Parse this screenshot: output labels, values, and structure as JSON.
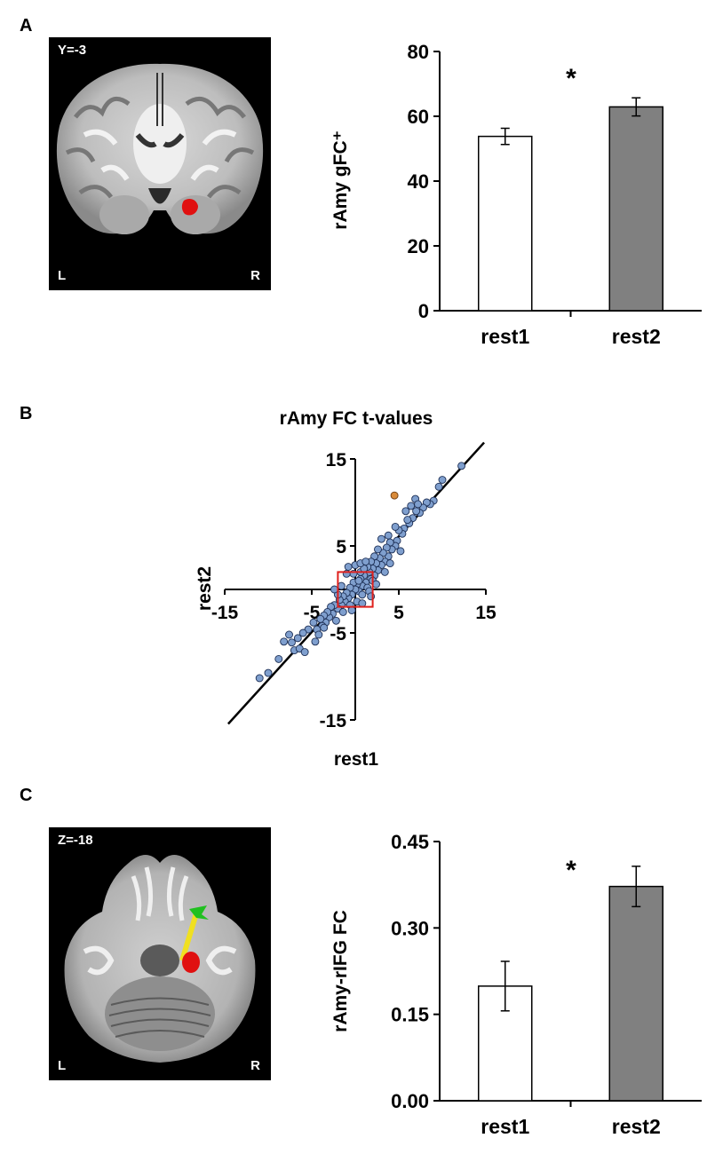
{
  "panels": {
    "a": {
      "letter": "A",
      "brain": {
        "slice": "Y=-3",
        "left": "L",
        "right": "R"
      }
    },
    "b": {
      "letter": "B"
    },
    "c": {
      "letter": "C",
      "brain": {
        "slice": "Z=-18",
        "left": "L",
        "right": "R"
      }
    }
  },
  "colors": {
    "bar_rest1": "#ffffff",
    "bar_rest2": "#808080",
    "scatter_point": "#7f9fce",
    "highlight_point": "#d98b3a",
    "roi_box": "#e0201c",
    "amygdala": "#e01010",
    "connection": "#f0e020",
    "rifg": "#20c020"
  },
  "chart_data": [
    {
      "type": "bar",
      "panel": "A",
      "categories": [
        "rest1",
        "rest2"
      ],
      "values": [
        53.8,
        62.9
      ],
      "errors": [
        2.5,
        2.8
      ],
      "ylabel": "rAmy gFC⁺",
      "ylim": [
        0,
        80
      ],
      "yticks": [
        "0",
        "20",
        "40",
        "60",
        "80"
      ],
      "significance": "*",
      "grid": false
    },
    {
      "type": "scatter",
      "panel": "B",
      "title": "rAmy FC t-values",
      "xlabel": "rest1",
      "ylabel": "rest2",
      "xlim": [
        -15,
        15
      ],
      "ylim": [
        -15,
        15
      ],
      "xticks": [
        "-15",
        "-5",
        "5",
        "15"
      ],
      "yticks": [
        "15",
        "5",
        "-5",
        "-15"
      ],
      "fit_line": {
        "slope": 1.1,
        "intercept": 0.6
      },
      "roi_box": {
        "x": [
          -2,
          2
        ],
        "y": [
          -2,
          2
        ]
      },
      "highlight": {
        "x": 4.5,
        "y": 10.8
      },
      "points": [
        [
          12.2,
          14.2
        ],
        [
          10.0,
          12.6
        ],
        [
          9.6,
          11.8
        ],
        [
          9.0,
          10.2
        ],
        [
          8.6,
          9.8
        ],
        [
          8.2,
          10.0
        ],
        [
          7.8,
          9.4
        ],
        [
          7.4,
          8.8
        ],
        [
          7.0,
          9.0
        ],
        [
          6.6,
          8.2
        ],
        [
          6.2,
          7.6
        ],
        [
          6.0,
          8.0
        ],
        [
          5.6,
          7.0
        ],
        [
          5.4,
          6.4
        ],
        [
          5.0,
          6.8
        ],
        [
          4.8,
          5.6
        ],
        [
          4.6,
          5.0
        ],
        [
          6.4,
          9.6
        ],
        [
          6.9,
          10.4
        ],
        [
          7.2,
          9.8
        ],
        [
          5.8,
          9.0
        ],
        [
          4.2,
          4.6
        ],
        [
          4.0,
          5.4
        ],
        [
          3.8,
          3.8
        ],
        [
          3.6,
          4.8
        ],
        [
          3.4,
          3.2
        ],
        [
          3.2,
          4.2
        ],
        [
          3.0,
          2.8
        ],
        [
          2.8,
          3.6
        ],
        [
          2.6,
          2.2
        ],
        [
          2.4,
          3.0
        ],
        [
          2.2,
          1.6
        ],
        [
          2.0,
          2.4
        ],
        [
          1.8,
          1.2
        ],
        [
          1.6,
          2.0
        ],
        [
          3.8,
          6.2
        ],
        [
          4.6,
          7.2
        ],
        [
          3.0,
          5.8
        ],
        [
          2.6,
          4.6
        ],
        [
          2.2,
          3.8
        ],
        [
          1.8,
          3.2
        ],
        [
          1.4,
          2.6
        ],
        [
          1.2,
          0.8
        ],
        [
          1.0,
          1.6
        ],
        [
          0.8,
          0.4
        ],
        [
          0.6,
          1.2
        ],
        [
          0.4,
          -0.2
        ],
        [
          0.2,
          0.6
        ],
        [
          0.0,
          0.0
        ],
        [
          -0.2,
          0.8
        ],
        [
          -0.4,
          -0.6
        ],
        [
          -0.6,
          0.2
        ],
        [
          -0.8,
          -1.0
        ],
        [
          -1.0,
          -0.4
        ],
        [
          -1.2,
          -1.4
        ],
        [
          -1.4,
          -0.8
        ],
        [
          -1.6,
          -1.8
        ],
        [
          -1.8,
          -1.2
        ],
        [
          0.6,
          2.0
        ],
        [
          1.0,
          2.4
        ],
        [
          -0.2,
          1.8
        ],
        [
          0.2,
          -1.4
        ],
        [
          0.8,
          -0.6
        ],
        [
          1.4,
          0.2
        ],
        [
          1.6,
          -0.2
        ],
        [
          0.4,
          1.0
        ],
        [
          -0.6,
          -1.8
        ],
        [
          -2.0,
          -2.2
        ],
        [
          -2.4,
          -1.8
        ],
        [
          -2.6,
          -2.8
        ],
        [
          -2.8,
          -2.0
        ],
        [
          -3.0,
          -3.2
        ],
        [
          -3.2,
          -2.6
        ],
        [
          -3.4,
          -3.8
        ],
        [
          -3.6,
          -3.0
        ],
        [
          -3.8,
          -4.2
        ],
        [
          -4.0,
          -3.4
        ],
        [
          -4.4,
          -4.6
        ],
        [
          -4.8,
          -3.8
        ],
        [
          -5.4,
          -4.6
        ],
        [
          -6.0,
          -5.0
        ],
        [
          -6.6,
          -5.6
        ],
        [
          -7.6,
          -5.2
        ],
        [
          -8.2,
          -6.0
        ],
        [
          -7.0,
          -7.0
        ],
        [
          -6.4,
          -6.8
        ],
        [
          -7.3,
          -6.1
        ],
        [
          -5.8,
          -7.2
        ],
        [
          -4.6,
          -6.0
        ],
        [
          -4.2,
          -5.2
        ],
        [
          -3.6,
          -4.4
        ],
        [
          -8.8,
          -8.0
        ],
        [
          -10.0,
          -9.6
        ],
        [
          -11.0,
          -10.2
        ],
        [
          -1.0,
          1.8
        ],
        [
          -0.8,
          2.6
        ],
        [
          0.0,
          2.8
        ],
        [
          0.6,
          3.0
        ],
        [
          1.2,
          3.2
        ],
        [
          -1.6,
          0.4
        ],
        [
          2.0,
          1.0
        ],
        [
          2.4,
          0.6
        ],
        [
          1.8,
          -0.8
        ],
        [
          0.8,
          -1.6
        ],
        [
          -0.4,
          -2.4
        ],
        [
          -1.4,
          -2.6
        ],
        [
          -2.2,
          -3.6
        ],
        [
          -2.0,
          -0.6
        ],
        [
          -2.4,
          0.0
        ],
        [
          3.4,
          2.0
        ],
        [
          4.0,
          3.0
        ],
        [
          5.2,
          4.4
        ]
      ]
    },
    {
      "type": "bar",
      "panel": "C",
      "categories": [
        "rest1",
        "rest2"
      ],
      "values": [
        0.199,
        0.372
      ],
      "errors": [
        0.043,
        0.035
      ],
      "ylabel": "rAmy-rIFG FC",
      "ylim": [
        0,
        0.45
      ],
      "yticks": [
        "0.00",
        "0.15",
        "0.30",
        "0.45"
      ],
      "significance": "*",
      "grid": false
    }
  ]
}
